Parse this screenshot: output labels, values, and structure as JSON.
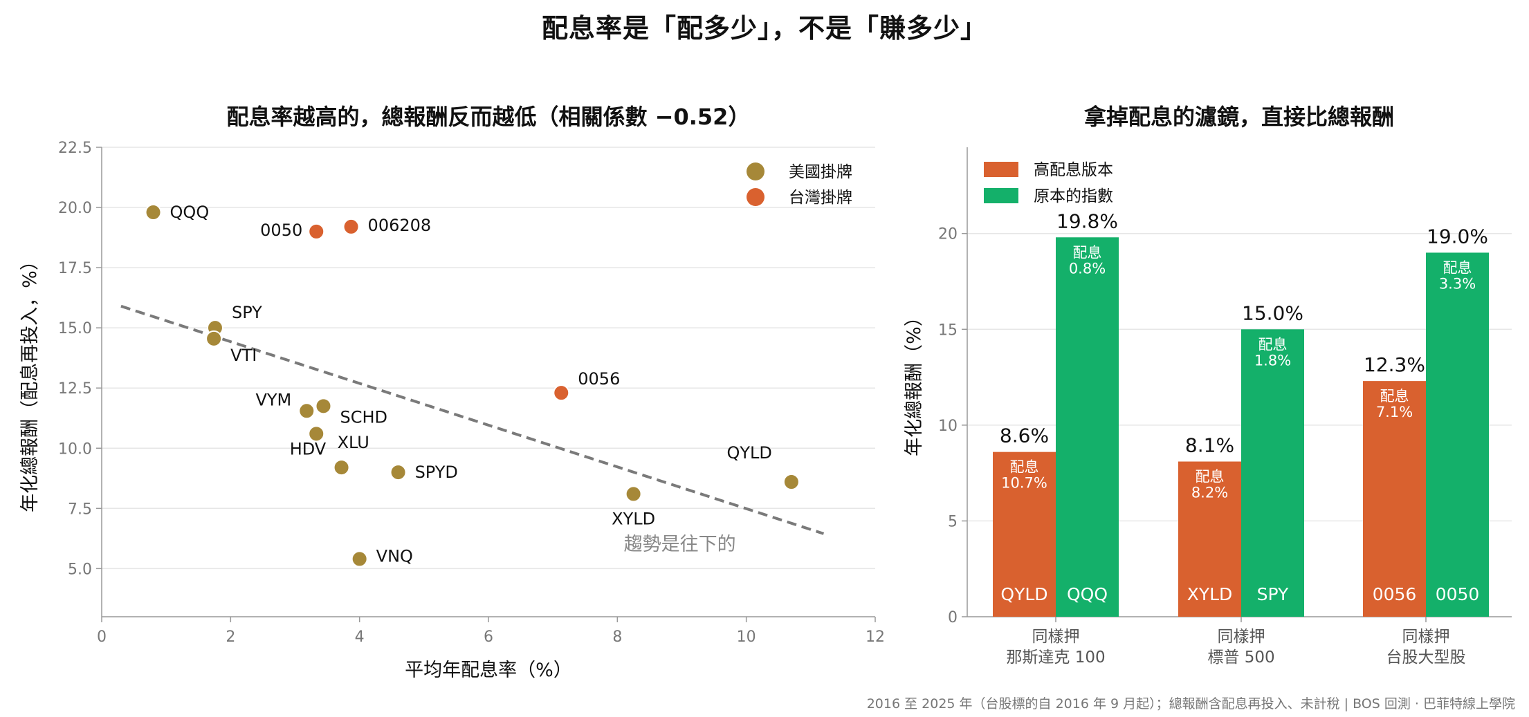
{
  "title": "配息率是「配多少」，不是「賺多少」",
  "footer": "2016 至 2025 年（台股標的自 2016 年 9 月起）；總報酬含配息再投入、未計稅 | BOS 回測 ·  巴菲特線上學院",
  "colors": {
    "us": "#a68838",
    "tw": "#d9612f",
    "high": "#d9612f",
    "orig": "#14b06a",
    "trend": "#7a7a7a"
  },
  "chart_data": [
    {
      "type": "scatter",
      "title": "配息率越高的，總報酬反而越低（相關係數 −0.52）",
      "xlabel": "平均年配息率（%）",
      "ylabel": "年化總報酬（配息再投入，%）",
      "xlim": [
        0,
        12
      ],
      "ylim": [
        3,
        22.5
      ],
      "xticks": [
        "0",
        "2",
        "4",
        "6",
        "8",
        "10",
        "12"
      ],
      "yticks": [
        "5.0",
        "7.5",
        "10.0",
        "12.5",
        "15.0",
        "17.5",
        "20.0",
        "22.5"
      ],
      "grid": "horizontal",
      "legend_position": "top-right",
      "legend": [
        {
          "key": "us",
          "label": "美國掛牌"
        },
        {
          "key": "tw",
          "label": "台灣掛牌"
        }
      ],
      "points": [
        {
          "label": "QQQ",
          "x": 0.8,
          "y": 19.8,
          "group": "us"
        },
        {
          "label": "SPY",
          "x": 1.76,
          "y": 15.0,
          "group": "us"
        },
        {
          "label": "VTI",
          "x": 1.74,
          "y": 14.55,
          "group": "us"
        },
        {
          "label": "VYM",
          "x": 3.18,
          "y": 11.55,
          "group": "us"
        },
        {
          "label": "SCHD",
          "x": 3.44,
          "y": 11.75,
          "group": "us"
        },
        {
          "label": "HDV",
          "x": 3.33,
          "y": 10.6,
          "group": "us"
        },
        {
          "label": "XLU",
          "x": 3.72,
          "y": 9.2,
          "group": "us"
        },
        {
          "label": "SPYD",
          "x": 4.6,
          "y": 9.0,
          "group": "us"
        },
        {
          "label": "VNQ",
          "x": 4.0,
          "y": 5.4,
          "group": "us"
        },
        {
          "label": "XYLD",
          "x": 8.25,
          "y": 8.1,
          "group": "us"
        },
        {
          "label": "QYLD",
          "x": 10.7,
          "y": 8.6,
          "group": "us"
        },
        {
          "label": "0050",
          "x": 3.33,
          "y": 19.0,
          "group": "tw"
        },
        {
          "label": "006208",
          "x": 3.87,
          "y": 19.2,
          "group": "tw"
        },
        {
          "label": "0056",
          "x": 7.13,
          "y": 12.3,
          "group": "tw"
        }
      ],
      "trend": {
        "x": [
          0.3,
          11.2
        ],
        "y": [
          15.9,
          6.45
        ],
        "annotation": "趨勢是往下的"
      }
    },
    {
      "type": "bar",
      "title": "拿掉配息的濾鏡，直接比總報酬",
      "ylabel": "年化總報酬（%）",
      "ylim": [
        0,
        24.5
      ],
      "yticks": [
        "0",
        "5",
        "10",
        "15",
        "20"
      ],
      "legend_position": "top-left",
      "categories": [
        "同樣押\n那斯達克 100",
        "同樣押\n標普 500",
        "同樣押\n台股大型股"
      ],
      "series": [
        {
          "key": "high",
          "name": "高配息版本",
          "values": [
            8.6,
            8.1,
            12.3
          ],
          "top_labels": [
            "8.6%",
            "8.1%",
            "12.3%"
          ],
          "yield_labels": [
            "10.7%",
            "8.2%",
            "7.1%"
          ],
          "tickers": [
            "QYLD",
            "XYLD",
            "0056"
          ]
        },
        {
          "key": "orig",
          "name": "原本的指數",
          "values": [
            19.8,
            15.0,
            19.0
          ],
          "top_labels": [
            "19.8%",
            "15.0%",
            "19.0%"
          ],
          "yield_labels": [
            "0.8%",
            "1.8%",
            "3.3%"
          ],
          "tickers": [
            "QQQ",
            "SPY",
            "0050"
          ]
        }
      ],
      "yield_prefix": "配息"
    }
  ]
}
